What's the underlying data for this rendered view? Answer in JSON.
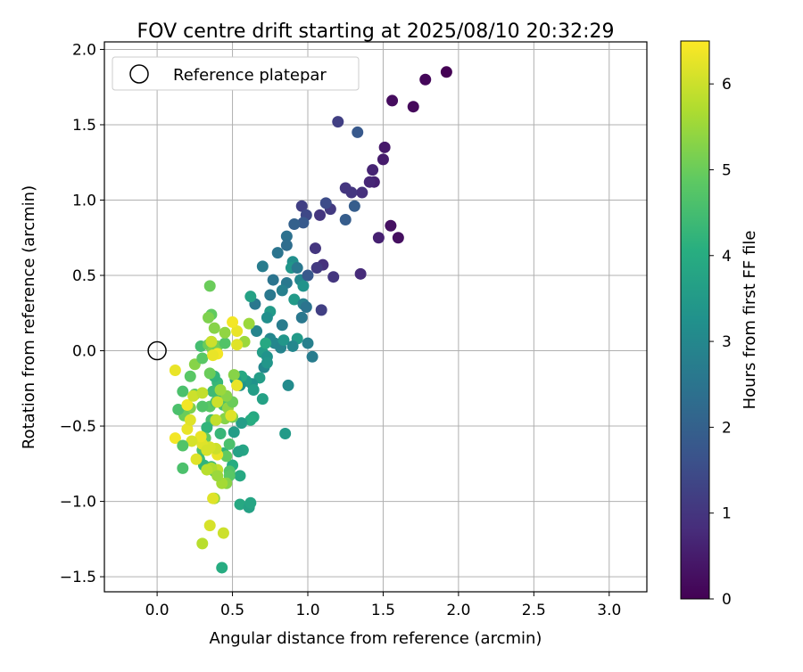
{
  "chart_data": {
    "type": "scatter",
    "title": "FOV centre drift starting at 2025/08/10 20:32:29",
    "xlabel": "Angular distance from reference (arcmin)",
    "ylabel": "Rotation from reference (arcmin)",
    "xlim": [
      -0.35,
      3.25
    ],
    "ylim": [
      -1.6,
      2.05
    ],
    "xticks": [
      0.0,
      0.5,
      1.0,
      1.5,
      2.0,
      2.5,
      3.0
    ],
    "xtick_labels": [
      "0.0",
      "0.5",
      "1.0",
      "1.5",
      "2.0",
      "2.5",
      "3.0"
    ],
    "yticks": [
      -1.5,
      -1.0,
      -0.5,
      0.0,
      0.5,
      1.0,
      1.5,
      2.0
    ],
    "ytick_labels": [
      "−1.5",
      "−1.0",
      "−0.5",
      "0.0",
      "0.5",
      "1.0",
      "1.5",
      "2.0"
    ],
    "grid": true,
    "legend": {
      "placement": "upper-left",
      "entries": [
        "Reference platepar"
      ]
    },
    "reference_point": {
      "x": 0.0,
      "y": 0.0,
      "label": "Reference platepar"
    },
    "colorbar": {
      "label": "Hours from first FF file",
      "colormap": "viridis",
      "range": [
        0,
        6.5
      ],
      "ticks": [
        0,
        1,
        2,
        3,
        4,
        5,
        6
      ],
      "tick_labels": [
        "0",
        "1",
        "2",
        "3",
        "4",
        "5",
        "6"
      ]
    },
    "points": [
      {
        "x": 1.92,
        "y": 1.85,
        "c": 0.0
      },
      {
        "x": 1.78,
        "y": 1.8,
        "c": 0.1
      },
      {
        "x": 1.7,
        "y": 1.62,
        "c": 0.15
      },
      {
        "x": 1.56,
        "y": 1.66,
        "c": 0.2
      },
      {
        "x": 1.6,
        "y": 0.75,
        "c": 0.25
      },
      {
        "x": 1.55,
        "y": 0.83,
        "c": 0.3
      },
      {
        "x": 1.51,
        "y": 1.35,
        "c": 0.45
      },
      {
        "x": 1.5,
        "y": 1.27,
        "c": 0.5
      },
      {
        "x": 1.47,
        "y": 0.75,
        "c": 0.6
      },
      {
        "x": 1.44,
        "y": 1.12,
        "c": 0.6
      },
      {
        "x": 1.43,
        "y": 1.2,
        "c": 0.65
      },
      {
        "x": 1.41,
        "y": 1.12,
        "c": 0.7
      },
      {
        "x": 1.35,
        "y": 0.51,
        "c": 0.8
      },
      {
        "x": 1.36,
        "y": 1.05,
        "c": 0.9
      },
      {
        "x": 1.29,
        "y": 1.05,
        "c": 1.0
      },
      {
        "x": 1.25,
        "y": 1.08,
        "c": 1.0
      },
      {
        "x": 1.2,
        "y": 1.52,
        "c": 1.2
      },
      {
        "x": 1.33,
        "y": 1.45,
        "c": 1.8
      },
      {
        "x": 1.31,
        "y": 0.96,
        "c": 1.9
      },
      {
        "x": 1.25,
        "y": 0.87,
        "c": 1.9
      },
      {
        "x": 1.17,
        "y": 0.49,
        "c": 1.0
      },
      {
        "x": 1.1,
        "y": 0.57,
        "c": 0.9
      },
      {
        "x": 1.08,
        "y": 0.9,
        "c": 1.0
      },
      {
        "x": 1.15,
        "y": 0.94,
        "c": 1.1
      },
      {
        "x": 1.12,
        "y": 0.98,
        "c": 1.5
      },
      {
        "x": 1.06,
        "y": 0.55,
        "c": 1.1
      },
      {
        "x": 1.05,
        "y": 0.68,
        "c": 1.0
      },
      {
        "x": 1.09,
        "y": 0.27,
        "c": 1.2
      },
      {
        "x": 0.96,
        "y": 0.96,
        "c": 1.2
      },
      {
        "x": 0.99,
        "y": 0.9,
        "c": 1.4
      },
      {
        "x": 0.97,
        "y": 0.85,
        "c": 1.8
      },
      {
        "x": 0.91,
        "y": 0.84,
        "c": 2.0
      },
      {
        "x": 0.86,
        "y": 0.76,
        "c": 2.4
      },
      {
        "x": 0.86,
        "y": 0.7,
        "c": 2.3
      },
      {
        "x": 0.8,
        "y": 0.65,
        "c": 2.5
      },
      {
        "x": 0.9,
        "y": 0.59,
        "c": 3.2
      },
      {
        "x": 0.89,
        "y": 0.55,
        "c": 3.4
      },
      {
        "x": 0.93,
        "y": 0.55,
        "c": 2.6
      },
      {
        "x": 0.95,
        "y": 0.47,
        "c": 3.0
      },
      {
        "x": 0.97,
        "y": 0.43,
        "c": 3.3
      },
      {
        "x": 1.0,
        "y": 0.5,
        "c": 1.8
      },
      {
        "x": 0.86,
        "y": 0.45,
        "c": 2.6
      },
      {
        "x": 0.83,
        "y": 0.4,
        "c": 2.8
      },
      {
        "x": 0.77,
        "y": 0.47,
        "c": 2.5
      },
      {
        "x": 0.75,
        "y": 0.37,
        "c": 2.6
      },
      {
        "x": 0.7,
        "y": 0.56,
        "c": 2.7
      },
      {
        "x": 0.91,
        "y": 0.34,
        "c": 3.5
      },
      {
        "x": 0.97,
        "y": 0.31,
        "c": 2.8
      },
      {
        "x": 0.99,
        "y": 0.29,
        "c": 2.5
      },
      {
        "x": 0.96,
        "y": 0.22,
        "c": 2.6
      },
      {
        "x": 0.65,
        "y": 0.31,
        "c": 2.6
      },
      {
        "x": 0.62,
        "y": 0.36,
        "c": 3.7
      },
      {
        "x": 0.75,
        "y": 0.26,
        "c": 3.5
      },
      {
        "x": 0.73,
        "y": 0.22,
        "c": 3.2
      },
      {
        "x": 0.83,
        "y": 0.17,
        "c": 2.7
      },
      {
        "x": 0.66,
        "y": 0.13,
        "c": 2.9
      },
      {
        "x": 0.75,
        "y": 0.08,
        "c": 3.0
      },
      {
        "x": 0.78,
        "y": 0.05,
        "c": 3.0
      },
      {
        "x": 0.82,
        "y": 0.02,
        "c": 2.9
      },
      {
        "x": 0.84,
        "y": 0.07,
        "c": 3.4
      },
      {
        "x": 0.93,
        "y": 0.08,
        "c": 3.5
      },
      {
        "x": 0.9,
        "y": 0.03,
        "c": 3.0
      },
      {
        "x": 1.0,
        "y": 0.05,
        "c": 2.8
      },
      {
        "x": 1.03,
        "y": -0.04,
        "c": 2.7
      },
      {
        "x": 0.7,
        "y": -0.01,
        "c": 3.6
      },
      {
        "x": 0.72,
        "y": 0.05,
        "c": 3.9
      },
      {
        "x": 0.73,
        "y": -0.04,
        "c": 3.3
      },
      {
        "x": 0.71,
        "y": -0.11,
        "c": 3.0
      },
      {
        "x": 0.68,
        "y": -0.18,
        "c": 3.6
      },
      {
        "x": 0.73,
        "y": -0.08,
        "c": 3.4
      },
      {
        "x": 0.63,
        "y": -0.22,
        "c": 3.3
      },
      {
        "x": 0.64,
        "y": -0.26,
        "c": 3.6
      },
      {
        "x": 0.59,
        "y": -0.2,
        "c": 3.5
      },
      {
        "x": 0.55,
        "y": -0.23,
        "c": 3.3
      },
      {
        "x": 0.56,
        "y": -0.17,
        "c": 3.9
      },
      {
        "x": 0.52,
        "y": -0.19,
        "c": 3.6
      },
      {
        "x": 0.7,
        "y": -0.32,
        "c": 3.7
      },
      {
        "x": 0.87,
        "y": -0.23,
        "c": 3.1
      },
      {
        "x": 0.85,
        "y": -0.55,
        "c": 3.5
      },
      {
        "x": 0.64,
        "y": -0.44,
        "c": 3.9
      },
      {
        "x": 0.62,
        "y": -0.46,
        "c": 4.0
      },
      {
        "x": 0.56,
        "y": -0.48,
        "c": 3.6
      },
      {
        "x": 0.57,
        "y": -0.66,
        "c": 3.8
      },
      {
        "x": 0.54,
        "y": -0.67,
        "c": 3.7
      },
      {
        "x": 0.51,
        "y": -0.54,
        "c": 3.6
      },
      {
        "x": 0.55,
        "y": -0.83,
        "c": 3.9
      },
      {
        "x": 0.5,
        "y": -0.76,
        "c": 4.0
      },
      {
        "x": 0.44,
        "y": -0.68,
        "c": 4.2
      },
      {
        "x": 0.55,
        "y": -1.02,
        "c": 3.9
      },
      {
        "x": 0.61,
        "y": -1.04,
        "c": 3.7
      },
      {
        "x": 0.62,
        "y": -1.01,
        "c": 3.8
      },
      {
        "x": 0.43,
        "y": -1.44,
        "c": 4.0
      },
      {
        "x": 0.42,
        "y": -0.55,
        "c": 4.3
      },
      {
        "x": 0.44,
        "y": -0.36,
        "c": 4.6
      },
      {
        "x": 0.42,
        "y": -0.28,
        "c": 4.4
      },
      {
        "x": 0.4,
        "y": -0.21,
        "c": 4.3
      },
      {
        "x": 0.38,
        "y": -0.17,
        "c": 4.2
      },
      {
        "x": 0.37,
        "y": -0.27,
        "c": 4.4
      },
      {
        "x": 0.35,
        "y": -0.37,
        "c": 4.8
      },
      {
        "x": 0.36,
        "y": -0.46,
        "c": 4.5
      },
      {
        "x": 0.33,
        "y": -0.51,
        "c": 4.2
      },
      {
        "x": 0.32,
        "y": -0.58,
        "c": 4.9
      },
      {
        "x": 0.3,
        "y": -0.66,
        "c": 4.6
      },
      {
        "x": 0.28,
        "y": -0.72,
        "c": 4.4
      },
      {
        "x": 0.31,
        "y": -0.76,
        "c": 4.2
      },
      {
        "x": 0.36,
        "y": -0.77,
        "c": 4.4
      },
      {
        "x": 0.38,
        "y": -0.8,
        "c": 4.9
      },
      {
        "x": 0.48,
        "y": -0.8,
        "c": 4.7
      },
      {
        "x": 0.48,
        "y": -0.83,
        "c": 4.8
      },
      {
        "x": 0.46,
        "y": -0.7,
        "c": 4.9
      },
      {
        "x": 0.48,
        "y": -0.62,
        "c": 4.6
      },
      {
        "x": 0.5,
        "y": -0.44,
        "c": 5.1
      },
      {
        "x": 0.47,
        "y": -0.38,
        "c": 5.4
      },
      {
        "x": 0.5,
        "y": -0.34,
        "c": 5.0
      },
      {
        "x": 0.46,
        "y": -0.3,
        "c": 5.3
      },
      {
        "x": 0.42,
        "y": -0.26,
        "c": 5.5
      },
      {
        "x": 0.39,
        "y": -0.34,
        "c": 4.5
      },
      {
        "x": 0.3,
        "y": -0.37,
        "c": 4.7
      },
      {
        "x": 0.25,
        "y": -0.29,
        "c": 4.9
      },
      {
        "x": 0.22,
        "y": -0.38,
        "c": 5.2
      },
      {
        "x": 0.18,
        "y": -0.43,
        "c": 5.0
      },
      {
        "x": 0.14,
        "y": -0.39,
        "c": 4.6
      },
      {
        "x": 0.17,
        "y": -0.27,
        "c": 4.6
      },
      {
        "x": 0.22,
        "y": -0.17,
        "c": 4.8
      },
      {
        "x": 0.25,
        "y": -0.09,
        "c": 5.3
      },
      {
        "x": 0.3,
        "y": -0.05,
        "c": 4.8
      },
      {
        "x": 0.29,
        "y": 0.03,
        "c": 4.5
      },
      {
        "x": 0.34,
        "y": 0.04,
        "c": 5.0
      },
      {
        "x": 0.36,
        "y": 0.06,
        "c": 4.6
      },
      {
        "x": 0.37,
        "y": 0.0,
        "c": 5.2
      },
      {
        "x": 0.4,
        "y": 0.03,
        "c": 5.1
      },
      {
        "x": 0.45,
        "y": 0.05,
        "c": 4.7
      },
      {
        "x": 0.45,
        "y": 0.12,
        "c": 5.4
      },
      {
        "x": 0.38,
        "y": 0.15,
        "c": 5.3
      },
      {
        "x": 0.36,
        "y": 0.24,
        "c": 4.9
      },
      {
        "x": 0.34,
        "y": 0.22,
        "c": 5.2
      },
      {
        "x": 0.35,
        "y": 0.43,
        "c": 5.0
      },
      {
        "x": 0.61,
        "y": 0.18,
        "c": 5.5
      },
      {
        "x": 0.58,
        "y": 0.06,
        "c": 5.5
      },
      {
        "x": 0.51,
        "y": -0.16,
        "c": 5.3
      },
      {
        "x": 0.35,
        "y": -0.15,
        "c": 5.0
      },
      {
        "x": 0.45,
        "y": -0.45,
        "c": 5.3
      },
      {
        "x": 0.46,
        "y": -0.88,
        "c": 5.3
      },
      {
        "x": 0.43,
        "y": -0.88,
        "c": 5.6
      },
      {
        "x": 0.38,
        "y": -0.98,
        "c": 5.4
      },
      {
        "x": 0.3,
        "y": -1.28,
        "c": 5.8
      },
      {
        "x": 0.35,
        "y": -1.16,
        "c": 6.1
      },
      {
        "x": 0.44,
        "y": -1.21,
        "c": 6.0
      },
      {
        "x": 0.37,
        "y": -0.98,
        "c": 6.2
      },
      {
        "x": 0.4,
        "y": -0.79,
        "c": 5.9
      },
      {
        "x": 0.36,
        "y": -0.78,
        "c": 5.7
      },
      {
        "x": 0.33,
        "y": -0.79,
        "c": 5.8
      },
      {
        "x": 0.4,
        "y": -0.69,
        "c": 6.3
      },
      {
        "x": 0.39,
        "y": -0.65,
        "c": 6.0
      },
      {
        "x": 0.35,
        "y": -0.64,
        "c": 6.1
      },
      {
        "x": 0.3,
        "y": -0.62,
        "c": 6.2
      },
      {
        "x": 0.26,
        "y": -0.72,
        "c": 6.2
      },
      {
        "x": 0.29,
        "y": -0.57,
        "c": 6.3
      },
      {
        "x": 0.23,
        "y": -0.6,
        "c": 6.1
      },
      {
        "x": 0.2,
        "y": -0.52,
        "c": 6.3
      },
      {
        "x": 0.22,
        "y": -0.46,
        "c": 6.2
      },
      {
        "x": 0.2,
        "y": -0.36,
        "c": 6.4
      },
      {
        "x": 0.24,
        "y": -0.3,
        "c": 6.0
      },
      {
        "x": 0.3,
        "y": -0.28,
        "c": 5.9
      },
      {
        "x": 0.39,
        "y": -0.46,
        "c": 5.9
      },
      {
        "x": 0.4,
        "y": -0.34,
        "c": 6.0
      },
      {
        "x": 0.49,
        "y": -0.43,
        "c": 6.2
      },
      {
        "x": 0.53,
        "y": -0.23,
        "c": 6.3
      },
      {
        "x": 0.4,
        "y": -0.02,
        "c": 6.4
      },
      {
        "x": 0.37,
        "y": -0.03,
        "c": 6.3
      },
      {
        "x": 0.36,
        "y": 0.06,
        "c": 6.0
      },
      {
        "x": 0.53,
        "y": 0.04,
        "c": 6.2
      },
      {
        "x": 0.53,
        "y": 0.13,
        "c": 6.3
      },
      {
        "x": 0.5,
        "y": 0.19,
        "c": 6.4
      },
      {
        "x": 0.12,
        "y": -0.13,
        "c": 6.3
      },
      {
        "x": 0.12,
        "y": -0.58,
        "c": 6.4
      },
      {
        "x": 0.17,
        "y": -0.63,
        "c": 4.7
      },
      {
        "x": 0.17,
        "y": -0.78,
        "c": 4.6
      },
      {
        "x": 0.33,
        "y": -0.66,
        "c": 6.1
      },
      {
        "x": 0.4,
        "y": -0.83,
        "c": 5.5
      }
    ]
  }
}
